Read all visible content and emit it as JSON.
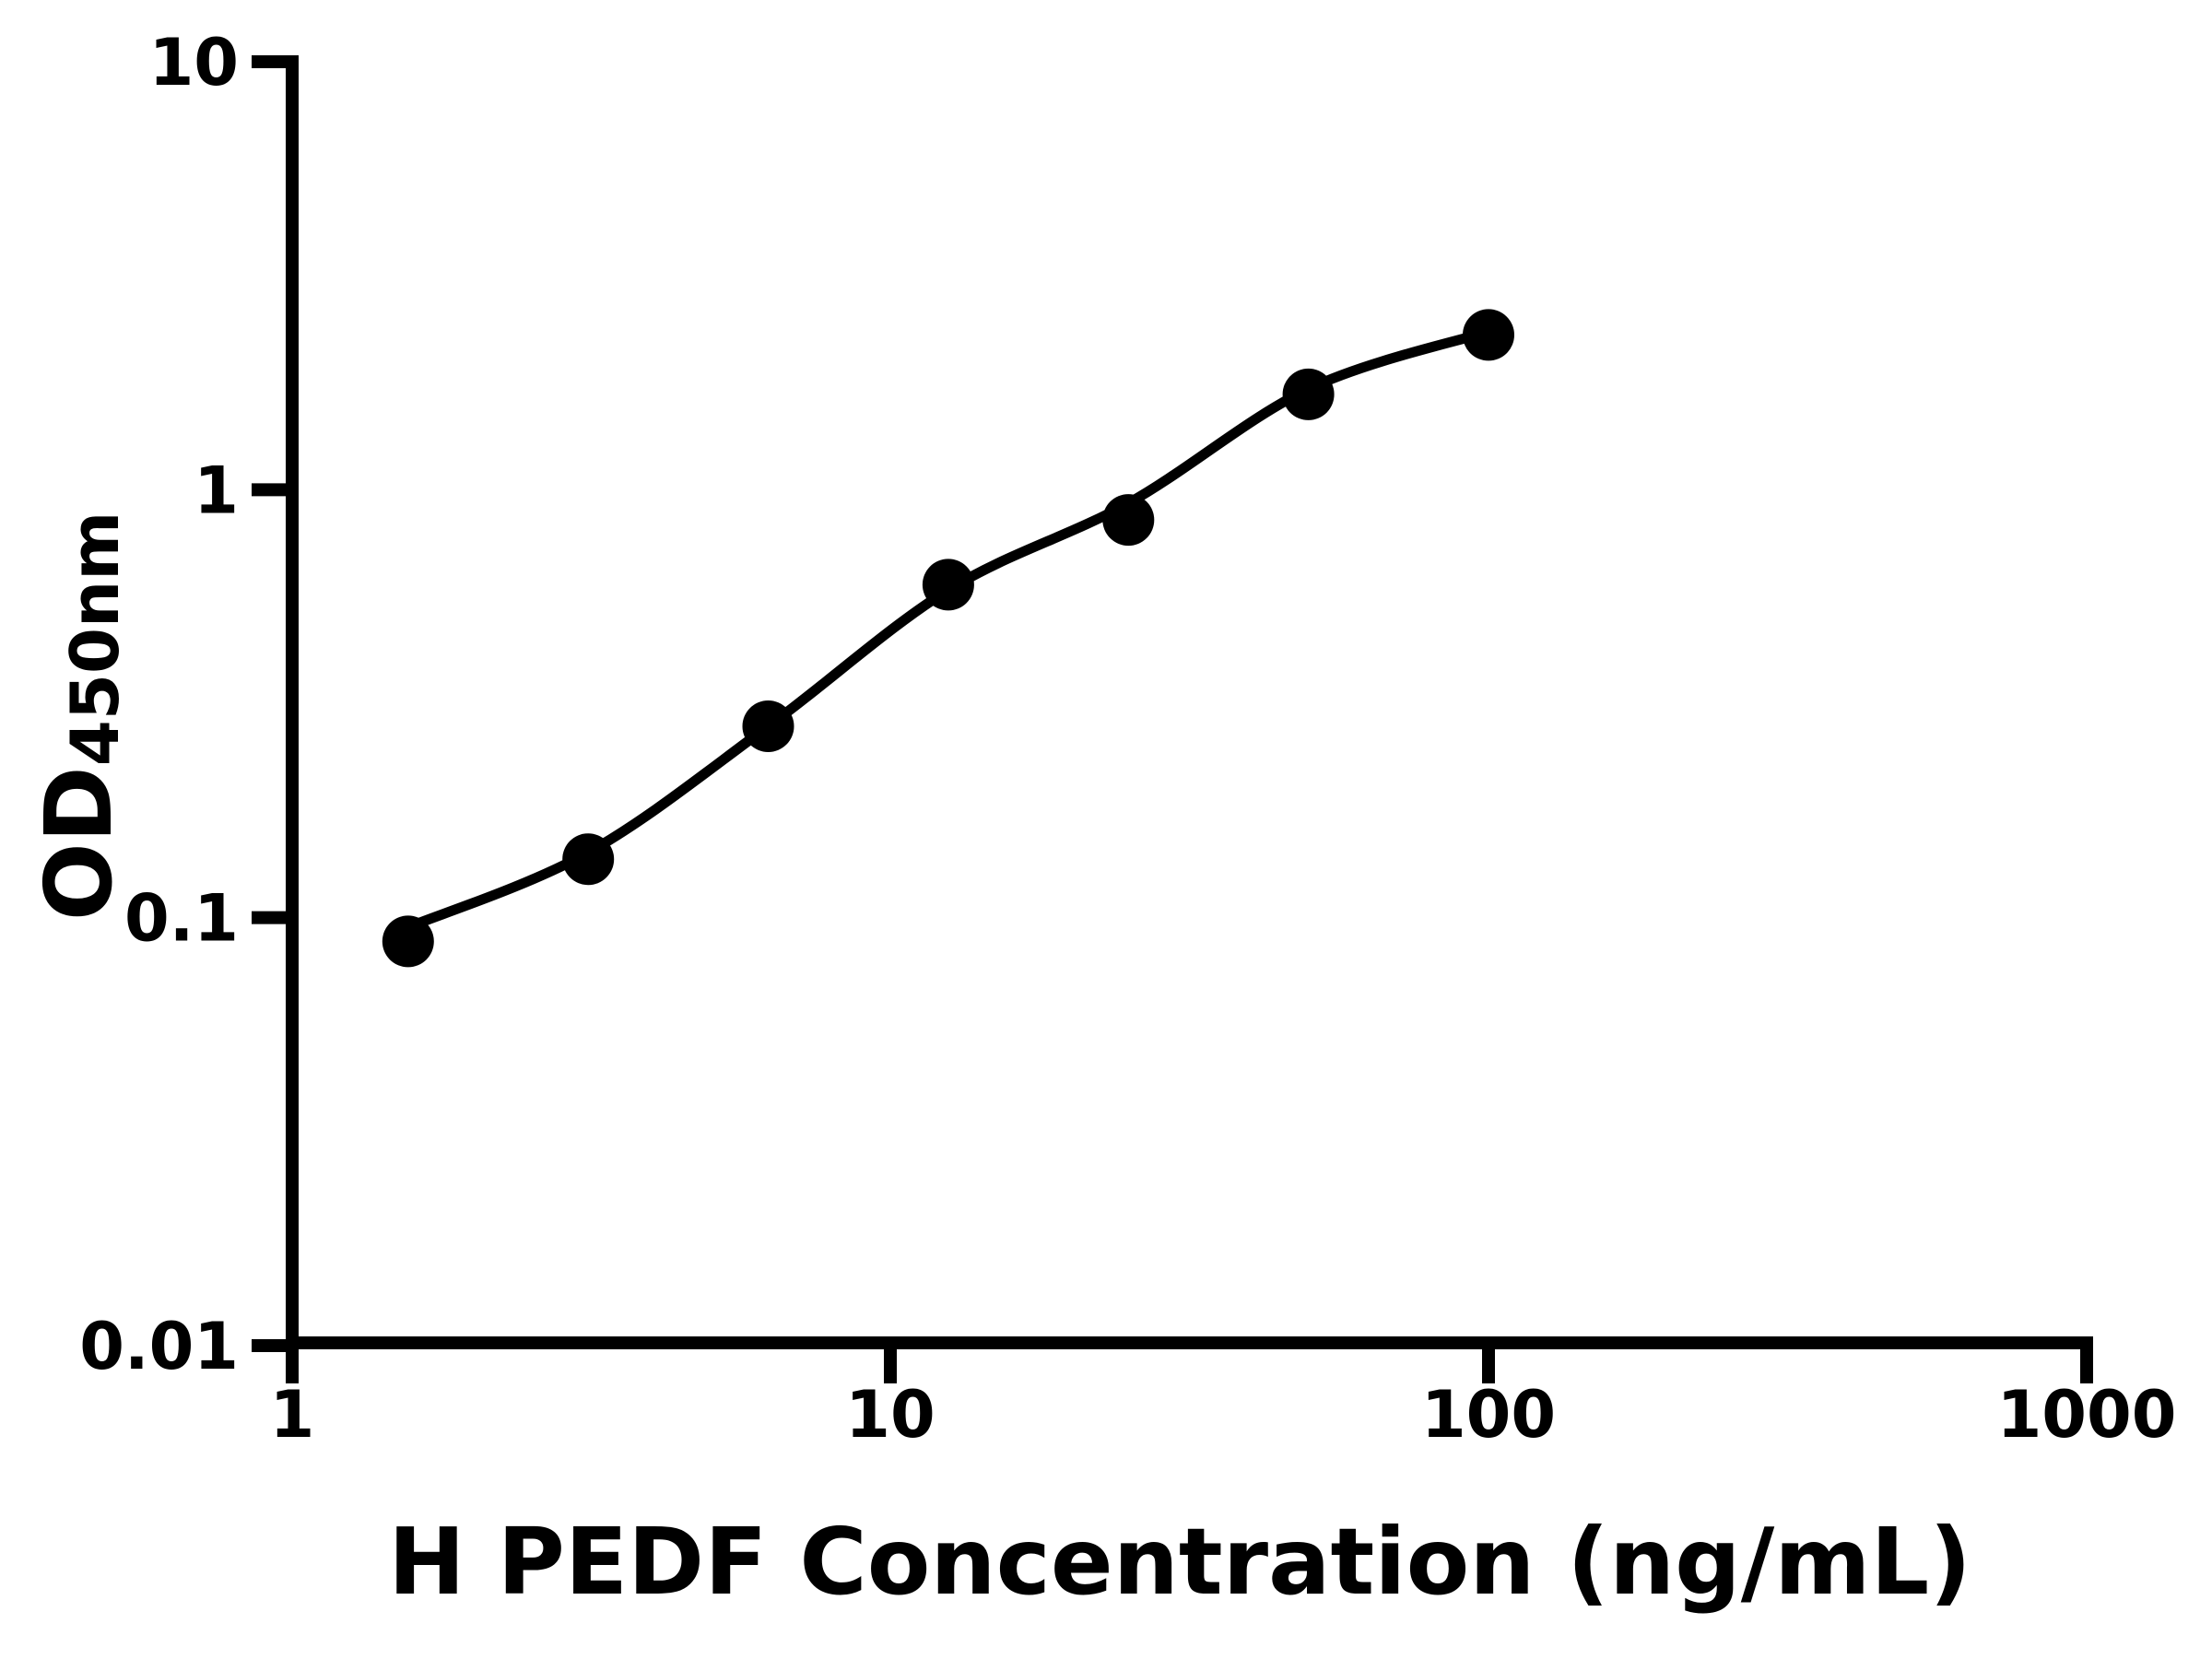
{
  "chart_data": {
    "type": "scatter",
    "title": "",
    "xlabel": "H PEDF Concentration (ng/mL)",
    "ylabel_base": "OD",
    "ylabel_sub": "450nm",
    "x_scale": "log",
    "y_scale": "log",
    "xlim": [
      1,
      1000
    ],
    "ylim": [
      0.01,
      10
    ],
    "x_ticks": [
      1,
      10,
      100,
      1000
    ],
    "y_ticks": [
      10,
      1,
      0.1,
      0.01
    ],
    "grid": false,
    "legend": false,
    "background_color": "#ffffff",
    "marker_color": "#000000",
    "line_color": "#000000",
    "series": [
      {
        "name": "standard-points",
        "type": "scatter",
        "x": [
          1.5625,
          3.125,
          6.25,
          12.5,
          25,
          50,
          100
        ],
        "y": [
          0.088,
          0.137,
          0.28,
          0.6,
          0.85,
          1.67,
          2.3
        ]
      },
      {
        "name": "4pl-fit-curve",
        "type": "line",
        "x": [
          1.5625,
          3.125,
          6.25,
          12.5,
          25,
          50,
          100
        ],
        "y": [
          0.095,
          0.142,
          0.28,
          0.583,
          0.93,
          1.72,
          2.34
        ]
      }
    ]
  }
}
